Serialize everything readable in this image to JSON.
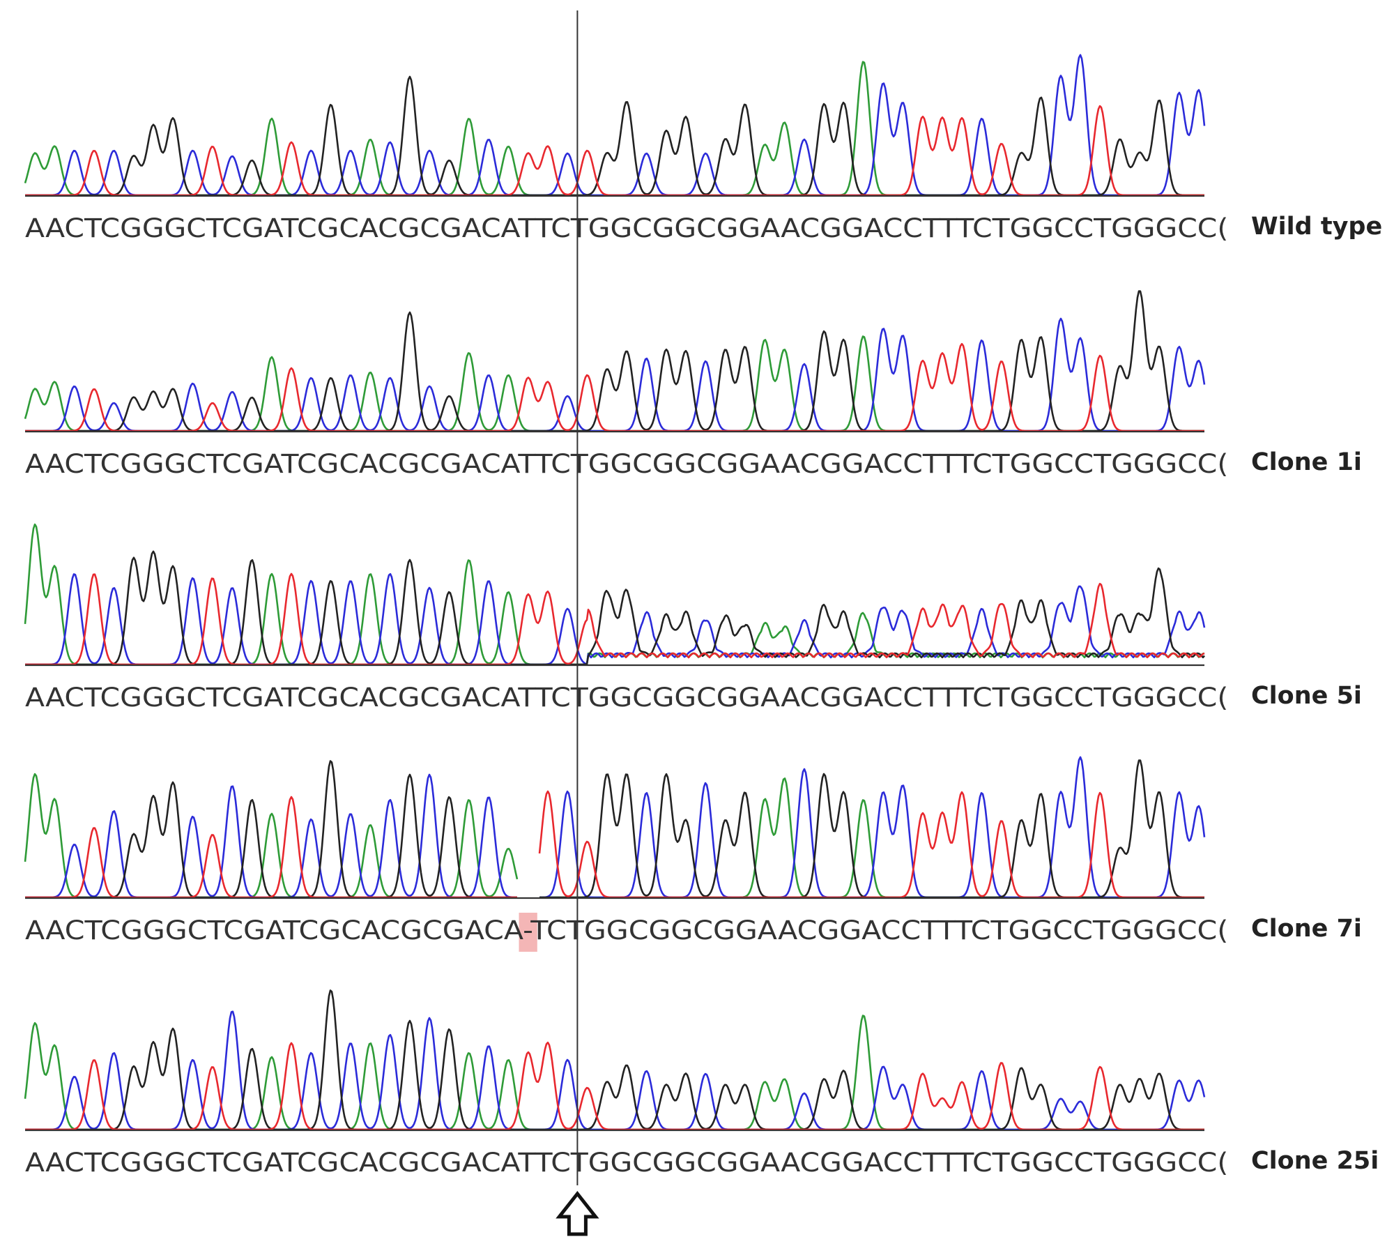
{
  "panels": [
    {
      "label": "Wild type",
      "sequence": "AACTCGGGCTCGATCGCACGCGACATTCTGGCGGCGGAACGGACCTTTCTGGCCTGGGCC(",
      "gap_index": -1,
      "gap_text": "",
      "heights": [
        0.3,
        0.35,
        0.32,
        0.32,
        0.32,
        0.28,
        0.5,
        0.55,
        0.32,
        0.35,
        0.28,
        0.25,
        0.55,
        0.38,
        0.32,
        0.65,
        0.32,
        0.4,
        0.38,
        0.85,
        0.32,
        0.25,
        0.55,
        0.4,
        0.35,
        0.3,
        0.35,
        0.3,
        0.32,
        0.3,
        0.67,
        0.3,
        0.46,
        0.56,
        0.3,
        0.4,
        0.65,
        0.36,
        0.52,
        0.4,
        0.65,
        0.66,
        0.96,
        0.8,
        0.66,
        0.56,
        0.55,
        0.55,
        0.55,
        0.37,
        0.3,
        0.7,
        0.85,
        1.0,
        0.64,
        0.4,
        0.3,
        0.68,
        0.73,
        0.75,
        0.52
      ]
    },
    {
      "label": "Clone 1i",
      "sequence": "AACTCGGGCTCGATCGCACGCGACATTCTGGCGGCGGAACGGACCTTTCTGGCCTGGGCC(",
      "gap_index": -1,
      "gap_text": "",
      "heights": [
        0.3,
        0.35,
        0.32,
        0.3,
        0.2,
        0.24,
        0.28,
        0.3,
        0.34,
        0.2,
        0.28,
        0.24,
        0.53,
        0.45,
        0.38,
        0.38,
        0.4,
        0.42,
        0.38,
        0.85,
        0.32,
        0.25,
        0.56,
        0.4,
        0.4,
        0.38,
        0.35,
        0.25,
        0.4,
        0.44,
        0.57,
        0.52,
        0.58,
        0.57,
        0.5,
        0.58,
        0.6,
        0.65,
        0.58,
        0.48,
        0.71,
        0.65,
        0.68,
        0.73,
        0.68,
        0.5,
        0.55,
        0.62,
        0.65,
        0.5,
        0.65,
        0.67,
        0.8,
        0.66,
        0.54,
        0.46,
        1.0,
        0.6,
        0.6,
        0.5,
        0.45
      ]
    },
    {
      "label": "Clone 5i",
      "sequence": "AACTCGGGCTCGATCGCACGCGACATTCTGGCGGCGGAACGGACCTTTCTGGCCTGGGCC(",
      "gap_index": -1,
      "gap_text": "",
      "heights": [
        1.0,
        0.7,
        0.65,
        0.65,
        0.55,
        0.76,
        0.8,
        0.7,
        0.62,
        0.62,
        0.55,
        0.75,
        0.65,
        0.65,
        0.6,
        0.6,
        0.6,
        0.65,
        0.65,
        0.75,
        0.55,
        0.52,
        0.75,
        0.6,
        0.52,
        0.5,
        0.52,
        0.4,
        0.32,
        0.46,
        0.46,
        0.3,
        0.28,
        0.3,
        0.26,
        0.28,
        0.22,
        0.22,
        0.2,
        0.24,
        0.35,
        0.3,
        0.3,
        0.35,
        0.32,
        0.32,
        0.35,
        0.35,
        0.32,
        0.38,
        0.38,
        0.38,
        0.38,
        0.5,
        0.5,
        0.3,
        0.3,
        0.62,
        0.3,
        0.3,
        0.3
      ]
    },
    {
      "label": "Clone 7i",
      "sequence": "AACTCGGGCTCGATCGCACGCGACA-TCTGGCGGCGGAACGGACCTTTCTGGCCTGGGCC(",
      "gap_index": 25,
      "gap_text": "–",
      "heights": [
        0.88,
        0.7,
        0.38,
        0.5,
        0.62,
        0.45,
        0.72,
        0.82,
        0.58,
        0.45,
        0.8,
        0.7,
        0.6,
        0.72,
        0.56,
        0.98,
        0.6,
        0.52,
        0.7,
        0.88,
        0.88,
        0.72,
        0.7,
        0.72,
        0.35,
        0.0,
        0.76,
        0.76,
        0.4,
        0.88,
        0.88,
        0.75,
        0.88,
        0.55,
        0.82,
        0.55,
        0.75,
        0.7,
        0.85,
        0.92,
        0.88,
        0.75,
        0.7,
        0.75,
        0.8,
        0.6,
        0.6,
        0.75,
        0.75,
        0.55,
        0.55,
        0.74,
        0.75,
        1.0,
        0.75,
        0.35,
        0.98,
        0.75,
        0.75,
        0.65,
        0.85
      ]
    },
    {
      "label": "Clone 25i",
      "sequence": "AACTCGGGCTCGATCGCACGCGACATTCTGGCGGCGGAACGGACCTTTCTGGCCTGGGCC(",
      "gap_index": -1,
      "gap_text": "",
      "heights": [
        0.76,
        0.6,
        0.38,
        0.5,
        0.55,
        0.45,
        0.62,
        0.72,
        0.5,
        0.45,
        0.85,
        0.58,
        0.52,
        0.62,
        0.55,
        1.0,
        0.62,
        0.62,
        0.68,
        0.78,
        0.8,
        0.72,
        0.55,
        0.6,
        0.5,
        0.55,
        0.62,
        0.5,
        0.3,
        0.34,
        0.46,
        0.42,
        0.32,
        0.4,
        0.4,
        0.32,
        0.32,
        0.34,
        0.36,
        0.26,
        0.36,
        0.42,
        0.82,
        0.45,
        0.32,
        0.4,
        0.22,
        0.34,
        0.42,
        0.48,
        0.44,
        0.32,
        0.22,
        0.2,
        0.45,
        0.32,
        0.36,
        0.4,
        0.35,
        0.35,
        0.3
      ]
    }
  ],
  "base_colors": {
    "A": "#2e9b37",
    "C": "#2b2bd9",
    "G": "#222222",
    "T": "#e8282e"
  },
  "gap_highlight_color": "#f4b6b6",
  "cut_site_index": 28,
  "arrow_icon": "hollow-up-arrow"
}
